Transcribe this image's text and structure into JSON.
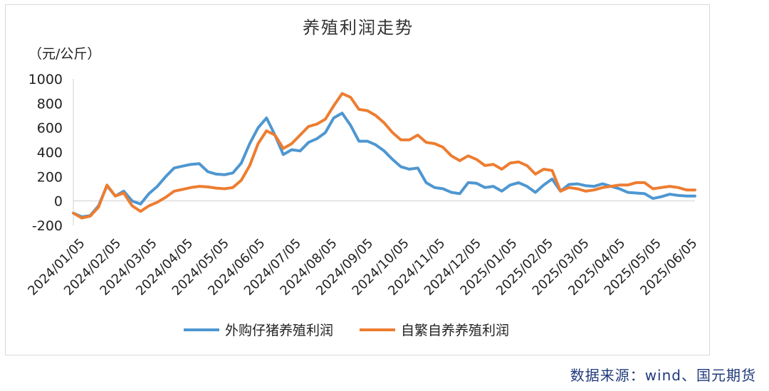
{
  "chart_data": {
    "type": "line",
    "title": "养殖利润走势",
    "ylabel": "（元/公斤）",
    "ylim": [
      -200,
      1000
    ],
    "yticks": [
      -200,
      0,
      200,
      400,
      600,
      800,
      1000
    ],
    "xticks": [
      "2024/01/05",
      "2024/02/05",
      "2024/03/05",
      "2024/04/05",
      "2024/05/05",
      "2024/06/05",
      "2024/07/05",
      "2024/08/05",
      "2024/09/05",
      "2024/10/05",
      "2024/11/05",
      "2024/12/05",
      "2025/01/05",
      "2025/02/05",
      "2025/03/05",
      "2025/04/05",
      "2025/05/05",
      "2025/06/05"
    ],
    "grid": false,
    "legend": "bottom",
    "series": [
      {
        "name": "外购仔猪养殖利润",
        "color": "#4e97d1",
        "values": [
          -100,
          -130,
          -120,
          -40,
          125,
          40,
          80,
          0,
          -25,
          60,
          120,
          200,
          270,
          285,
          300,
          305,
          240,
          220,
          215,
          230,
          310,
          470,
          600,
          680,
          540,
          380,
          420,
          410,
          480,
          510,
          560,
          680,
          720,
          620,
          490,
          490,
          460,
          410,
          340,
          280,
          260,
          270,
          150,
          110,
          100,
          70,
          60,
          150,
          145,
          110,
          120,
          80,
          130,
          150,
          120,
          70,
          130,
          180,
          80,
          135,
          140,
          125,
          120,
          140,
          120,
          100,
          70,
          65,
          60,
          20,
          35,
          55,
          45,
          40,
          40
        ]
      },
      {
        "name": "自繁自养养殖利润",
        "color": "#ed7d31",
        "values": [
          -100,
          -140,
          -125,
          -50,
          130,
          40,
          65,
          -40,
          -85,
          -40,
          -10,
          30,
          80,
          95,
          110,
          120,
          115,
          105,
          100,
          110,
          170,
          290,
          470,
          575,
          540,
          430,
          470,
          540,
          610,
          630,
          670,
          780,
          880,
          850,
          750,
          740,
          700,
          640,
          560,
          500,
          500,
          540,
          480,
          470,
          440,
          370,
          330,
          370,
          340,
          290,
          300,
          260,
          310,
          320,
          290,
          220,
          260,
          250,
          80,
          110,
          100,
          80,
          90,
          110,
          120,
          130,
          130,
          150,
          150,
          100,
          110,
          120,
          110,
          90,
          90
        ]
      }
    ]
  },
  "source": "数据来源：wind、国元期货"
}
